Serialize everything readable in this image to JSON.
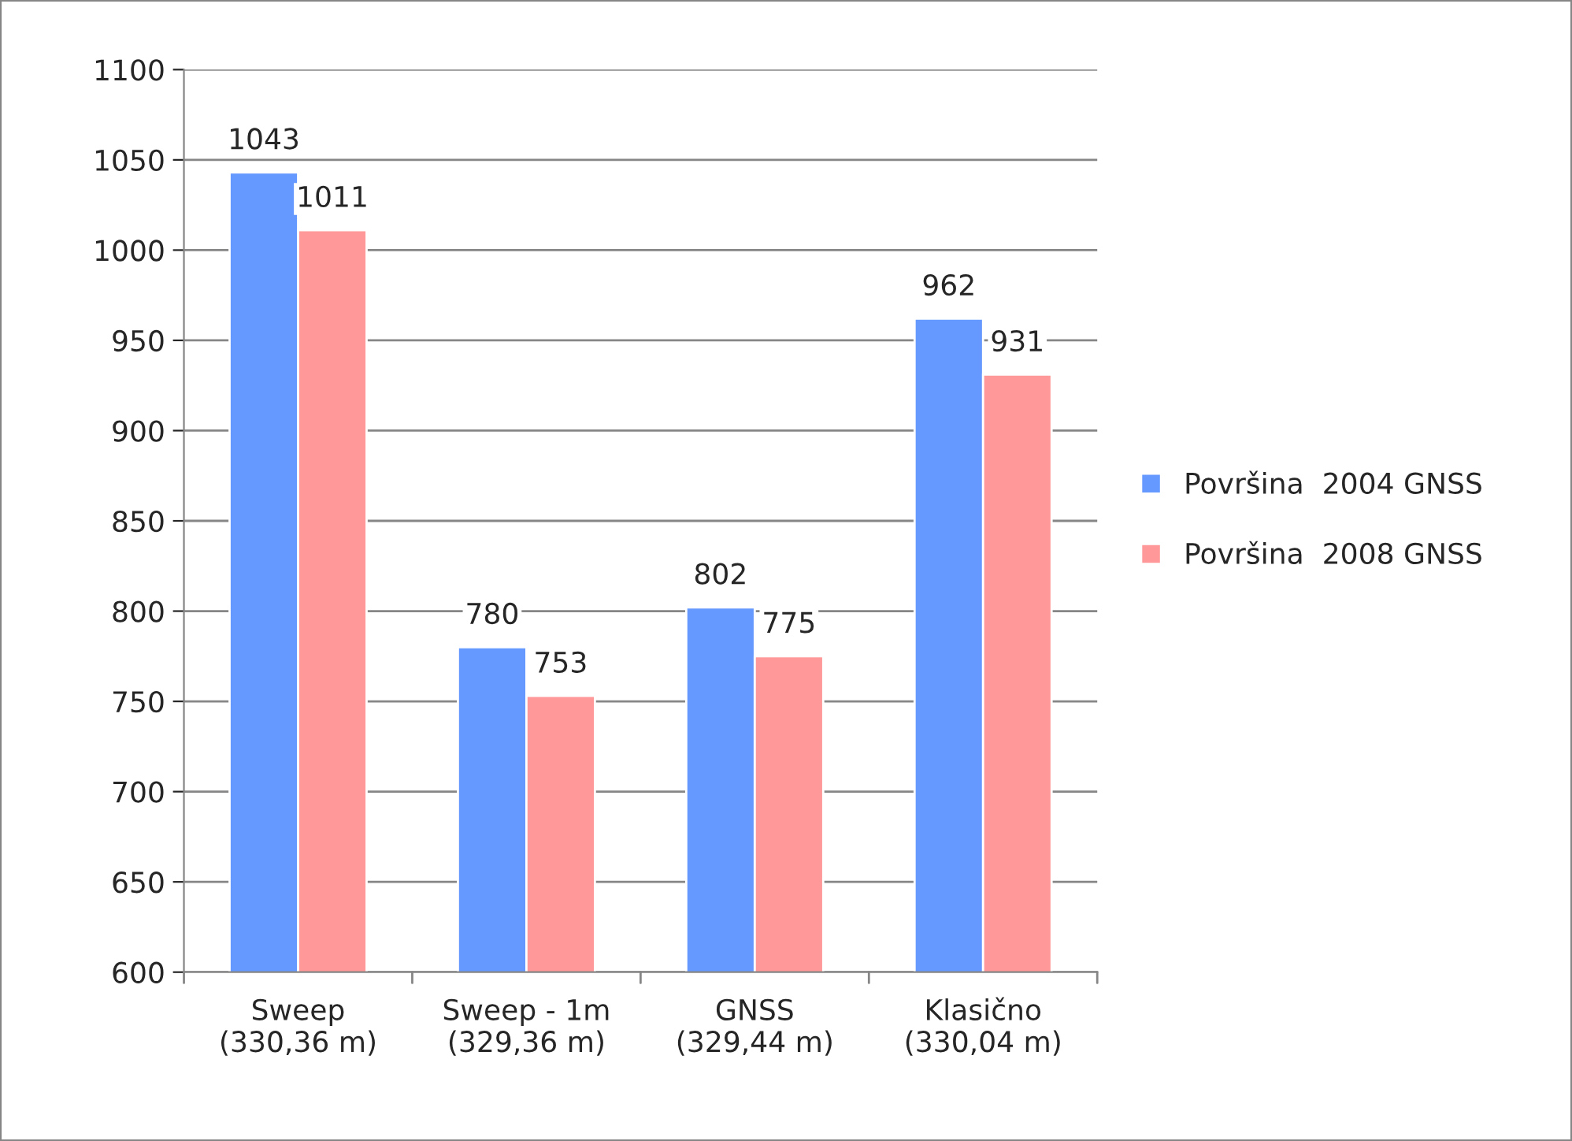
{
  "chart_data": {
    "type": "bar",
    "categories": [
      "Sweep\n(330,36 m)",
      "Sweep - 1m\n(329,36 m)",
      "GNSS\n(329,44 m)",
      "Klasično\n(330,04 m)"
    ],
    "series": [
      {
        "name": "Površina  2004 GNSS",
        "color": "#6699ff",
        "values": [
          1043,
          780,
          802,
          962
        ]
      },
      {
        "name": "Površina  2008 GNSS",
        "color": "#ff9999",
        "values": [
          1011,
          753,
          775,
          931
        ]
      }
    ],
    "ylim": [
      600,
      1100
    ],
    "yticks": [
      600,
      650,
      700,
      750,
      800,
      850,
      900,
      950,
      1000,
      1050,
      1100
    ],
    "grid": "y",
    "legend": "right",
    "data_labels": true
  }
}
